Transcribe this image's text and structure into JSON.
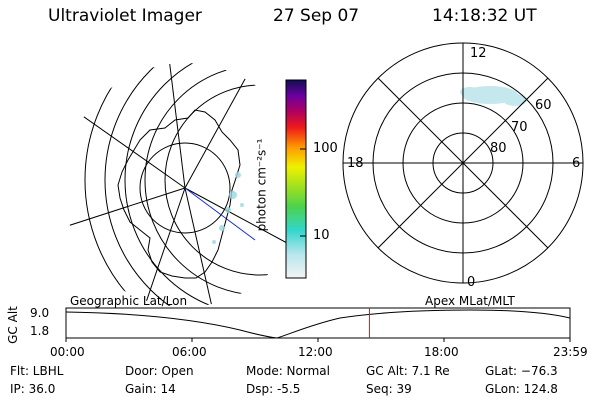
{
  "header": {
    "instrument": "Ultraviolet Imager",
    "date": "27 Sep 07",
    "time": "14:18:32 UT"
  },
  "colorbar": {
    "label": "photon cm⁻²s⁻¹",
    "ticks": [
      "100",
      "10"
    ]
  },
  "polar_plot": {
    "mlt_labels": [
      "12",
      "18",
      "6",
      "0"
    ],
    "lat_labels": [
      "60",
      "70",
      "80"
    ]
  },
  "timeline": {
    "left_title": "Geographic Lat/Lon",
    "right_title": "Apex MLat/MLT",
    "axis_label": "GC Alt",
    "y_ticks": [
      "9.0",
      "1.8"
    ],
    "x_ticks": [
      "00:00",
      "06:00",
      "12:00",
      "18:00",
      "23:59"
    ],
    "current_marker_fraction": 0.602,
    "colors": {
      "marker": "#ff0000",
      "curve": "#000000"
    }
  },
  "info": {
    "filter": "Flt: LBHL",
    "ip": "IP: 36.0",
    "door": "Door: Open",
    "gain": "Gain: 14",
    "mode": "Mode: Normal",
    "dsp": "Dsp:    -5.5",
    "gc_alt": "GC Alt: 7.1 Re",
    "seq": "Seq: 39",
    "glat": "GLat: −76.3",
    "glon": "GLon: 124.8"
  }
}
